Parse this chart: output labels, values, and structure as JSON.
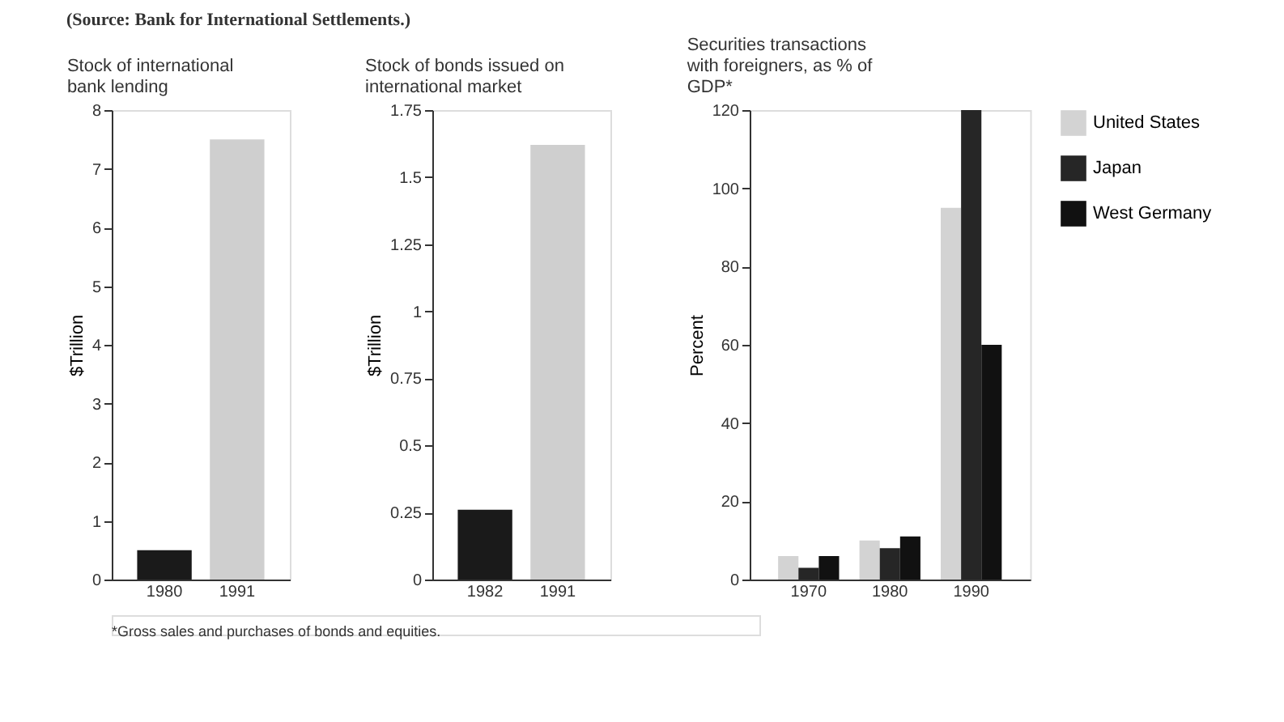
{
  "chart_data": [
    {
      "type": "bar",
      "title": "Stock of international bank lending",
      "ylabel": "$Trillion",
      "categories": [
        "1980",
        "1991"
      ],
      "values": [
        0.5,
        7.5
      ],
      "colors": [
        "#1a1a1a",
        "#cfcfcf"
      ],
      "ylim": [
        0,
        8
      ],
      "yticks": [
        0,
        1,
        2,
        3,
        4,
        5,
        6,
        7,
        8
      ],
      "grid": false,
      "annotations": [
        "(Source: Bank for International Settlements.)",
        "*Gross sales and purchases of bonds and equities."
      ]
    },
    {
      "type": "bar",
      "title": "Stock of bonds issued on international market",
      "ylabel": "$Trillion",
      "categories": [
        "1982",
        "1991"
      ],
      "values": [
        0.26,
        1.62
      ],
      "colors": [
        "#1a1a1a",
        "#cfcfcf"
      ],
      "ylim": [
        0,
        1.75
      ],
      "yticks": [
        0,
        0.25,
        0.5,
        0.75,
        1,
        1.25,
        1.5,
        1.75
      ],
      "grid": false
    },
    {
      "type": "bar",
      "title": "Securities transactions with foreigners, as % of GDP*",
      "ylabel": "Percent",
      "categories": [
        "1970",
        "1980",
        "1990"
      ],
      "ylim": [
        0,
        120
      ],
      "yticks": [
        0,
        20,
        40,
        60,
        80,
        100,
        120
      ],
      "grid": false,
      "legend": "right",
      "series": [
        {
          "name": "United States",
          "color": "#d3d3d3",
          "values": [
            6,
            10,
            95
          ]
        },
        {
          "name": "Japan",
          "color": "#262626",
          "values": [
            3,
            8,
            120
          ]
        },
        {
          "name": "West Germany",
          "color": "#111111",
          "values": [
            6,
            11,
            60
          ]
        }
      ]
    }
  ]
}
